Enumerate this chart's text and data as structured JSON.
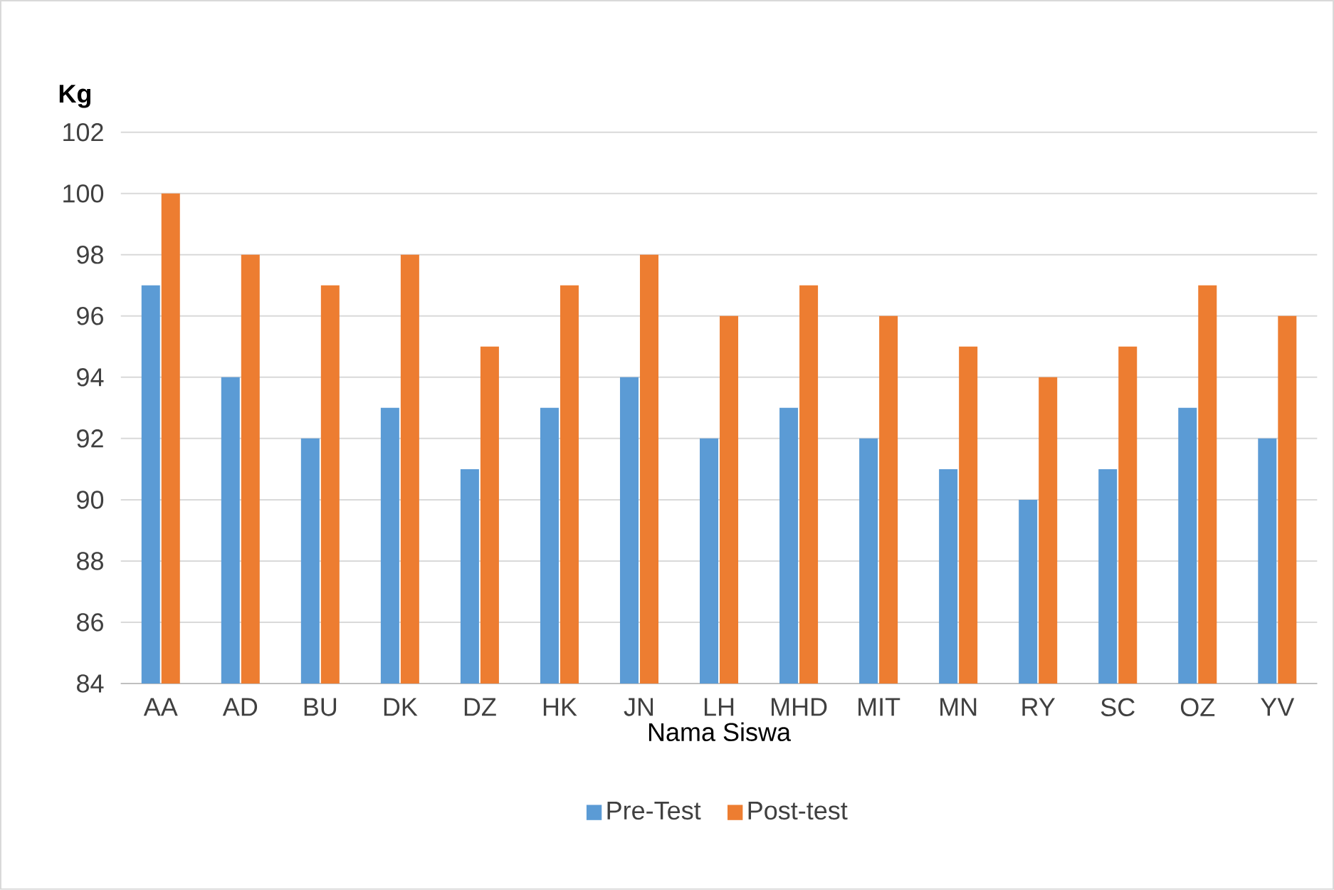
{
  "chart_data": {
    "type": "bar",
    "xlabel": "Nama Siswa",
    "ylabel": "Kg",
    "categories": [
      "AA",
      "AD",
      "BU",
      "DK",
      "DZ",
      "HK",
      "JN",
      "LH",
      "MHD",
      "MIT",
      "MN",
      "RY",
      "SC",
      "OZ",
      "YV"
    ],
    "series": [
      {
        "name": "Pre-Test",
        "color": "#5b9bd5",
        "values": [
          97,
          94,
          92,
          93,
          91,
          93,
          94,
          92,
          93,
          92,
          91,
          90,
          91,
          93,
          92
        ]
      },
      {
        "name": "Post-test",
        "color": "#ed7d31",
        "values": [
          100,
          98,
          97,
          98,
          95,
          97,
          98,
          96,
          97,
          96,
          95,
          94,
          95,
          97,
          96
        ]
      }
    ],
    "ylim": [
      84,
      102
    ],
    "yticks": [
      84,
      86,
      88,
      90,
      92,
      94,
      96,
      98,
      100,
      102
    ],
    "grid": "y",
    "legend": "bottom"
  }
}
